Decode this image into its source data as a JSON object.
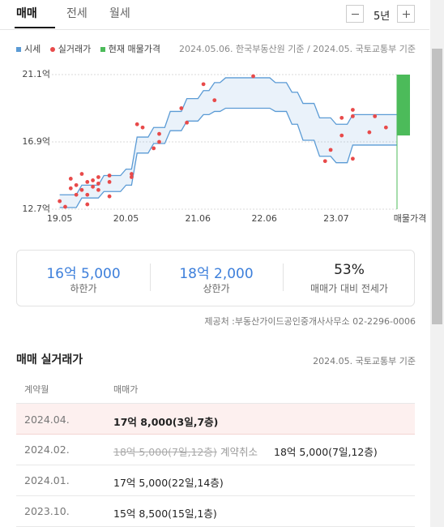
{
  "tabs": [
    "매매",
    "전세",
    "월세"
  ],
  "period": "5년",
  "legend_note": "2024.05.06. 한국부동산원 기준 / 2024.05. 국토교통부 기준",
  "chart_data": {
    "type": "scatter",
    "xlim": [
      "19.03",
      "24.06"
    ],
    "xticks": [
      "19.05",
      "20.05",
      "21.06",
      "22.06",
      "23.07"
    ],
    "listing_label": "매물가격",
    "ylim": [
      12.7,
      21.1
    ],
    "yticks": [
      {
        "value": 12.7,
        "label": "12.7억"
      },
      {
        "value": 16.9,
        "label": "16.9억"
      },
      {
        "value": 21.1,
        "label": "21.1억"
      }
    ],
    "grid": true,
    "series": [
      {
        "name": "시세",
        "color": "#5b9bd5",
        "x": [
          "19.05",
          "19.08",
          "19.09",
          "19.12",
          "20.01",
          "20.04",
          "20.05",
          "20.06",
          "20.07",
          "20.09",
          "20.10",
          "20.12",
          "21.01",
          "21.03",
          "21.04",
          "21.06",
          "21.07",
          "21.08",
          "21.09",
          "21.10",
          "21.11",
          "22.07",
          "22.08",
          "22.10",
          "22.11",
          "22.12",
          "23.01",
          "23.03",
          "23.04",
          "23.06",
          "23.07",
          "23.09",
          "23.10",
          "24.06"
        ],
        "upper": [
          13.6,
          13.6,
          14.2,
          14.2,
          14.8,
          14.8,
          15.2,
          15.2,
          17.2,
          17.2,
          17.8,
          17.8,
          18.8,
          18.8,
          19.6,
          19.6,
          20.1,
          20.1,
          20.6,
          20.6,
          20.9,
          20.9,
          20.6,
          20.6,
          20.0,
          20.0,
          19.3,
          19.3,
          18.4,
          18.4,
          18.0,
          18.0,
          18.6,
          18.6
        ],
        "values": [
          12.8,
          12.8,
          13.4,
          13.4,
          13.8,
          13.8,
          14.2,
          14.2,
          16.2,
          16.2,
          16.8,
          16.8,
          17.6,
          17.6,
          18.2,
          18.2,
          18.6,
          18.6,
          18.8,
          18.8,
          19.0,
          19.0,
          18.8,
          18.8,
          18.0,
          18.0,
          17.0,
          17.0,
          16.0,
          16.0,
          15.6,
          15.6,
          16.7,
          16.7
        ]
      },
      {
        "name": "실거래가",
        "color": "#e84a4a",
        "x": [
          "19.05",
          "19.06",
          "19.07",
          "19.07",
          "19.08",
          "19.08",
          "19.09",
          "19.09",
          "19.10",
          "19.10",
          "19.10",
          "19.11",
          "19.11",
          "19.12",
          "19.12",
          "19.12",
          "20.02",
          "20.02",
          "20.02",
          "20.06",
          "20.06",
          "20.07",
          "20.08",
          "20.10",
          "20.11",
          "20.11",
          "21.03",
          "21.04",
          "21.07",
          "21.09",
          "22.04",
          "23.05",
          "23.06",
          "23.08",
          "23.08",
          "23.10",
          "23.10",
          "23.10",
          "24.01",
          "24.02",
          "24.04"
        ],
        "values": [
          13.2,
          12.85,
          14.0,
          14.6,
          13.6,
          14.2,
          14.9,
          13.9,
          14.4,
          13.0,
          13.6,
          14.5,
          14.1,
          14.7,
          13.9,
          14.3,
          13.5,
          14.4,
          14.8,
          14.9,
          14.7,
          18.0,
          17.8,
          16.5,
          17.4,
          16.9,
          19.0,
          18.1,
          20.5,
          19.5,
          21.0,
          15.7,
          16.4,
          17.3,
          18.4,
          18.9,
          18.5,
          15.85,
          17.5,
          18.5,
          17.8
        ]
      },
      {
        "name": "현재 매물가격",
        "color": "#4cbb5a",
        "values": [
          17.3,
          21.1
        ]
      }
    ]
  },
  "summary": [
    {
      "value": "16억 5,000",
      "label": "하한가"
    },
    {
      "value": "18억 2,000",
      "label": "상한가"
    },
    {
      "value": "53%",
      "label": "매매가 대비 전세가"
    }
  ],
  "provider": "제공처 :부동산가이드공인중개사사무소 02-2296-0006",
  "section": {
    "title": "매매 실거래가",
    "note": "2024.05. 국토교통부 기준"
  },
  "table": {
    "headers": [
      "계약월",
      "매매가"
    ],
    "rows": [
      {
        "month": "2024.04.",
        "price": "17억 8,000(3일,7층)"
      },
      {
        "month": "2024.02.",
        "cancelled_price": "18억 5,000(7일,12층)",
        "cancel_note": "계약취소",
        "price": "18억 5,000(7일,12층)"
      },
      {
        "month": "2024.01.",
        "price": "17억 5,000(22일,14층)"
      },
      {
        "month": "2023.10.",
        "price": "15억 8,500(15일,1층)"
      }
    ]
  }
}
